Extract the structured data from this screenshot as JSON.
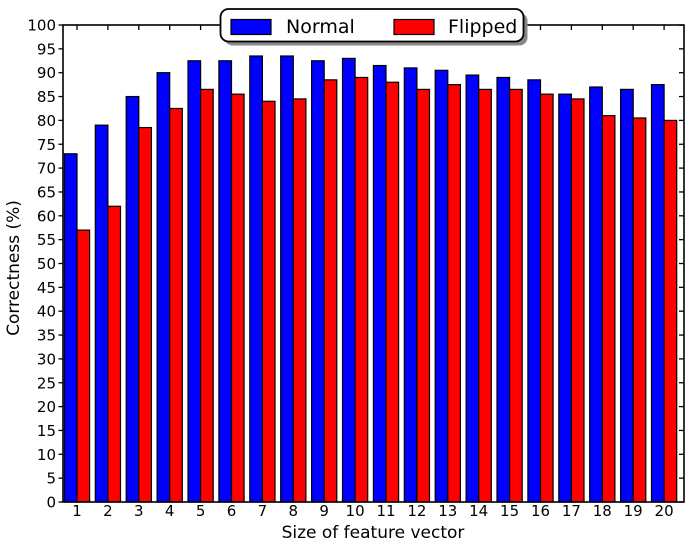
{
  "chart_data": {
    "type": "bar",
    "title": "",
    "xlabel": "Size of feature vector",
    "ylabel": "Correctness (%)",
    "categories": [
      "1",
      "2",
      "3",
      "4",
      "5",
      "6",
      "7",
      "8",
      "9",
      "10",
      "11",
      "12",
      "13",
      "14",
      "15",
      "16",
      "17",
      "18",
      "19",
      "20"
    ],
    "series": [
      {
        "name": "Normal",
        "color": "#0000ff",
        "values": [
          73,
          79,
          85,
          90,
          92.5,
          92.5,
          93.5,
          93.5,
          92.5,
          93,
          91.5,
          91,
          90.5,
          89.5,
          89,
          88.5,
          85.5,
          87,
          86.5,
          87.5
        ]
      },
      {
        "name": "Flipped",
        "color": "#ff0000",
        "values": [
          57,
          62,
          78.5,
          82.5,
          86.5,
          85.5,
          84,
          84.5,
          88.5,
          89,
          88,
          86.5,
          87.5,
          86.5,
          86.5,
          85.5,
          84.5,
          81,
          80.5,
          80
        ]
      }
    ],
    "ylim": [
      0,
      100
    ],
    "ytick_step": 5,
    "grid": false,
    "bar_edge_color": "#000000",
    "axis_color": "#000000",
    "background_color": "#ffffff",
    "legend": {
      "position": "upper center",
      "shadow": true,
      "shadow_color": "#888888",
      "labels": [
        "Normal",
        "Flipped"
      ]
    }
  }
}
